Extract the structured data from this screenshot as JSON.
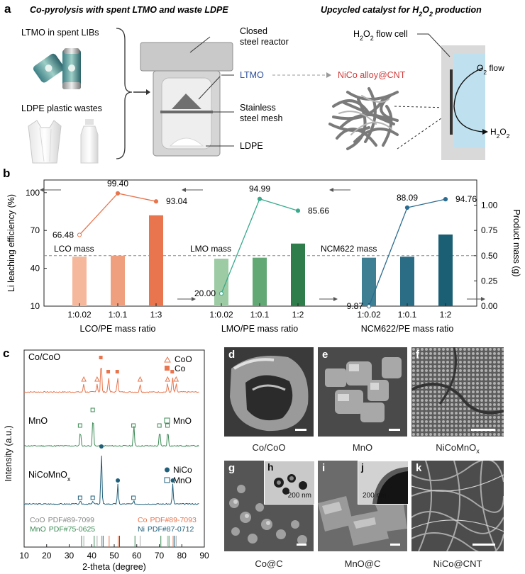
{
  "panel_a": {
    "label": "a",
    "left_title": "Co-pyrolysis with spent LTMO and waste LDPE",
    "right_title_pre": "Upcycled catalyst for H",
    "right_title_sub": "2",
    "right_title_o": "O",
    "right_title_sub2": "2",
    "right_title_post": " production",
    "ltmo_source": "LTMO in spent LIBs",
    "ldpe_source": "LDPE plastic wastes",
    "reactor_l1": "Closed",
    "reactor_l2": "steel reactor",
    "ltmo_label": "LTMO",
    "product_label": "NiCo alloy@CNT",
    "mesh_l1": "Stainless",
    "mesh_l2": "steel mesh",
    "ldpe_label": "LDPE",
    "flowcell_pre": "H",
    "flowcell_sub": "2",
    "flowcell_post": "O",
    "flowcell_sub2": "2",
    "flowcell_tail": " flow cell",
    "o2_pre": "O",
    "o2_sub": "2",
    "o2_post": " flow",
    "h2o2_pre": "H",
    "h2o2_sub": "2",
    "h2o2_mid": "O",
    "h2o2_sub2": "2"
  },
  "colors": {
    "lco": [
      "#f5b89c",
      "#ef9f7d",
      "#e8754d"
    ],
    "lmo": [
      "#9dcba4",
      "#62a874",
      "#2e7d4a"
    ],
    "ncm": [
      "#3f7f93",
      "#2c6d86",
      "#1b5f75"
    ],
    "lco_line": "#e8754d",
    "lmo_line": "#3aaa8c",
    "ncm_line": "#2a6b8f",
    "coo": "#e8754d",
    "mno": "#3c8a55",
    "nico": "#1f5f7a"
  },
  "chart_data": [
    {
      "type": "bar",
      "panel": "b",
      "ylabel_left": "Li leaching efficiency (%)",
      "ylabel_right": "Product mass (g)",
      "ylim_left": [
        10,
        110
      ],
      "ylim_right": [
        0,
        1.25
      ],
      "yticks_left": [
        "10",
        "40",
        "70",
        "100"
      ],
      "yticks_right": [
        "0.00",
        "0.25",
        "0.50",
        "0.75",
        "1.00"
      ],
      "groups": [
        {
          "name": "LCO mass",
          "xlabel": "LCO/PE mass ratio",
          "categories": [
            "1:0.02",
            "1:0.1",
            "1:3"
          ],
          "mass": [
            0.49,
            0.5,
            0.9
          ],
          "efficiency": [
            66.48,
            99.4,
            93.04
          ],
          "labels": [
            "66.48",
            "99.40",
            "93.04"
          ]
        },
        {
          "name": "LMO mass",
          "xlabel": "LMO/PE mass ratio",
          "categories": [
            "1:0.02",
            "1:0.1",
            "1:2"
          ],
          "mass": [
            0.47,
            0.48,
            0.62
          ],
          "efficiency": [
            20.0,
            94.99,
            85.66
          ],
          "labels": [
            "20.00",
            "94.99",
            "85.66"
          ]
        },
        {
          "name": "NCM622 mass",
          "xlabel": "NCM622/PE mass ratio",
          "categories": [
            "1:0.02",
            "1:0.1",
            "1:2"
          ],
          "mass": [
            0.48,
            0.49,
            0.71
          ],
          "efficiency": [
            9.87,
            88.09,
            94.76
          ],
          "labels": [
            "9.87",
            "88.09",
            "94.76"
          ]
        }
      ],
      "reference_line": 0.5
    },
    {
      "type": "line",
      "panel": "c",
      "xlabel": "2-theta (degree)",
      "ylabel": "Intensity (a.u.)",
      "xlim": [
        10,
        90
      ],
      "xticks": [
        "10",
        "20",
        "30",
        "40",
        "50",
        "60",
        "70",
        "80",
        "90"
      ],
      "series": [
        {
          "name": "Co/CoO",
          "legend": [
            "CoO",
            "Co"
          ],
          "peaks_coo": [
            36.5,
            42.4,
            61.5,
            73.7,
            77.5
          ],
          "peaks_co": [
            44.2,
            47.5,
            51.5,
            75.9
          ]
        },
        {
          "name": "MnO",
          "legend": [
            "MnO"
          ],
          "peaks": [
            35.0,
            40.6,
            58.7,
            70.2,
            73.8
          ]
        },
        {
          "name": "NiCoMnOx",
          "name_main": "NiCoMnO",
          "name_sub": "x",
          "legend": [
            "NiCo",
            "MnO"
          ],
          "peaks_nico": [
            44.3,
            51.6,
            76.0
          ],
          "peaks_mno": [
            35.0,
            40.6,
            58.7
          ]
        }
      ],
      "references": [
        {
          "phase": "CoO",
          "pdf": "PDF#89-7099"
        },
        {
          "phase": "Co",
          "pdf": "PDF#89-7093"
        },
        {
          "phase": "MnO",
          "pdf": "PDF#75-0625"
        },
        {
          "phase": "Ni",
          "pdf": "PDF#87-0712"
        }
      ]
    }
  ],
  "panel_c_label": "c",
  "panel_b_label": "b",
  "sem": {
    "d": {
      "label": "d",
      "caption": "Co/CoO"
    },
    "e": {
      "label": "e",
      "caption": "MnO"
    },
    "f": {
      "label": "f",
      "caption_main": "NiCoMnO",
      "caption_sub": "x"
    },
    "g": {
      "label": "g",
      "caption": "Co@C"
    },
    "h": {
      "label": "h",
      "scale": "200 nm"
    },
    "i": {
      "label": "i",
      "caption": "MnO@C"
    },
    "j": {
      "label": "j",
      "scale": "200 nm"
    },
    "k": {
      "label": "k",
      "caption": "NiCo@CNT"
    }
  }
}
